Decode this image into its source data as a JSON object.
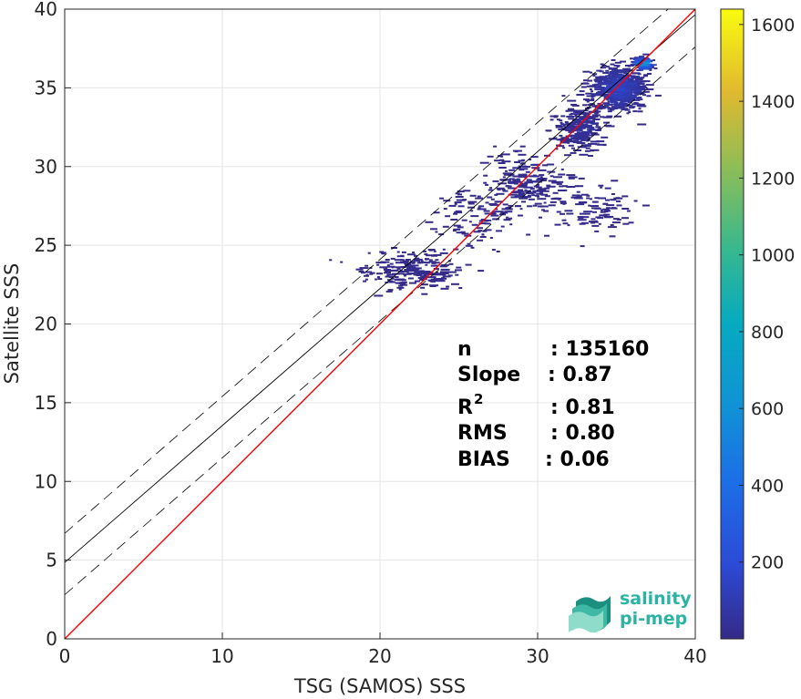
{
  "chart_data": {
    "type": "heatmap",
    "xlabel": "TSG (SAMOS) SSS",
    "ylabel": "Satellite SSS",
    "xlim": [
      0,
      40
    ],
    "ylim": [
      0,
      40
    ],
    "xticks": [
      "0",
      "10",
      "20",
      "30",
      "40"
    ],
    "yticks": [
      "0",
      "5",
      "10",
      "15",
      "20",
      "25",
      "30",
      "35",
      "40"
    ],
    "grid": true,
    "identity_line": {
      "slope": 1,
      "intercept": 0,
      "color": "#ff0000"
    },
    "regression_line": {
      "slope": 0.87,
      "intercept": 4.85,
      "color": "#000000"
    },
    "rms_band_lines": [
      {
        "slope": 0.87,
        "intercept": 6.7,
        "style": "dashed"
      },
      {
        "slope": 0.87,
        "intercept": 2.8,
        "style": "dashed"
      }
    ],
    "stats": [
      {
        "label": "n",
        "value": ": 135160"
      },
      {
        "label": "Slope",
        "value": ": 0.87"
      },
      {
        "label": "R",
        "sup": "2",
        "value": ": 0.81"
      },
      {
        "label": "RMS",
        "value": ": 0.80"
      },
      {
        "label": "BIAS",
        "value": ": 0.06"
      }
    ],
    "colorbar": {
      "range": [
        0,
        1640
      ],
      "ticks": [
        "200",
        "400",
        "600",
        "800",
        "1000",
        "1200",
        "1400",
        "1600"
      ],
      "colormap": "parula"
    },
    "density_clusters": [
      {
        "x": 35.0,
        "y": 35.0,
        "sx": 1.6,
        "sy": 1.3,
        "n": 520,
        "base": 200
      },
      {
        "x": 36.5,
        "y": 36.6,
        "sx": 0.5,
        "sy": 0.4,
        "n": 90,
        "base": 900
      },
      {
        "x": 32.5,
        "y": 32.5,
        "sx": 1.5,
        "sy": 1.4,
        "n": 260,
        "base": 60
      },
      {
        "x": 29.0,
        "y": 29.0,
        "sx": 2.0,
        "sy": 1.7,
        "n": 180,
        "base": 30
      },
      {
        "x": 22.0,
        "y": 23.5,
        "sx": 3.0,
        "sy": 1.1,
        "n": 220,
        "base": 20
      },
      {
        "x": 33.0,
        "y": 27.5,
        "sx": 2.5,
        "sy": 1.5,
        "n": 110,
        "base": 20
      },
      {
        "x": 26.0,
        "y": 27.0,
        "sx": 2.5,
        "sy": 1.8,
        "n": 100,
        "base": 15
      }
    ]
  },
  "logo": {
    "line1": "salinity",
    "line2": "pi-mep"
  }
}
